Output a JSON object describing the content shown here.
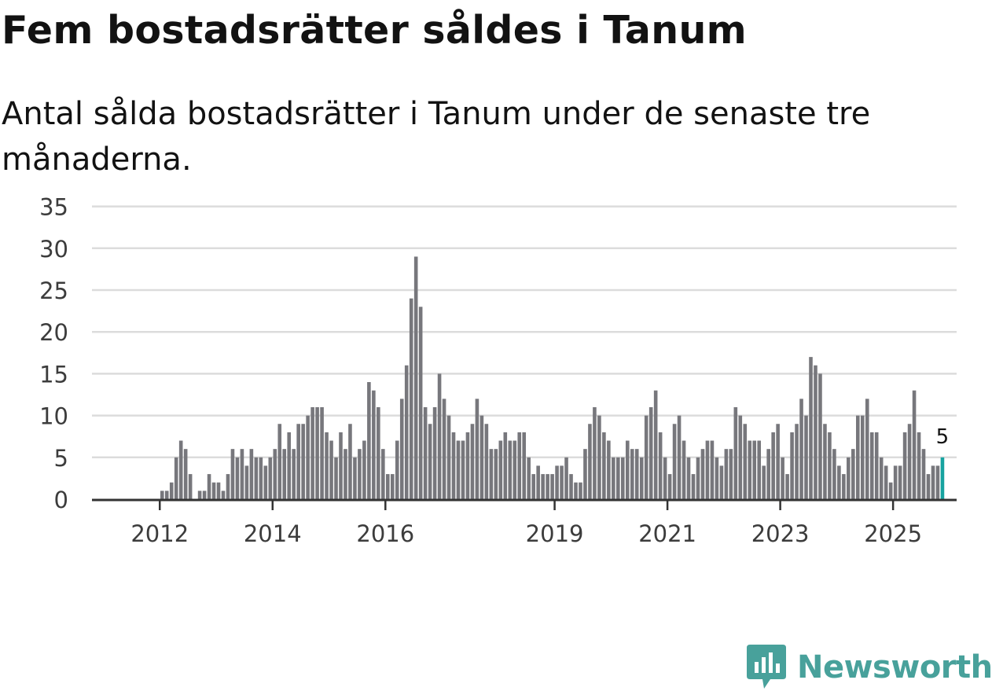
{
  "header": {
    "title": "Fem bostadsrätter såldes i Tanum",
    "subtitle": "Antal sålda bostadsrätter i Tanum under de senaste tre månaderna."
  },
  "brand": {
    "name": "Newsworthy",
    "color": "#48a19b"
  },
  "colors": {
    "bar": "#77777c",
    "highlight": "#17a3a0",
    "grid": "#dcdcdc",
    "axis": "#333333"
  },
  "chart_data": {
    "type": "bar",
    "title": "Fem bostadsrätter såldes i Tanum",
    "subtitle": "Antal sålda bostadsrätter i Tanum under de senaste tre månaderna.",
    "xlabel": "",
    "ylabel": "",
    "ylim": [
      0,
      35
    ],
    "yticks": [
      0,
      5,
      10,
      15,
      20,
      25,
      30,
      35
    ],
    "grid": true,
    "start_year": 2011,
    "x_tick_labels": [
      "2012",
      "2014",
      "2016",
      "2019",
      "2021",
      "2023",
      "2025"
    ],
    "values": [
      0,
      0,
      0,
      0,
      0,
      0,
      0,
      0,
      0,
      0,
      0,
      0,
      1,
      1,
      2,
      5,
      7,
      6,
      3,
      0,
      1,
      1,
      3,
      2,
      2,
      1,
      3,
      6,
      5,
      6,
      4,
      6,
      5,
      5,
      4,
      5,
      6,
      9,
      6,
      8,
      6,
      9,
      9,
      10,
      11,
      11,
      11,
      8,
      7,
      5,
      8,
      6,
      9,
      5,
      6,
      7,
      14,
      13,
      11,
      6,
      3,
      3,
      7,
      12,
      16,
      24,
      29,
      23,
      11,
      9,
      11,
      15,
      12,
      10,
      8,
      7,
      7,
      8,
      9,
      12,
      10,
      9,
      6,
      6,
      7,
      8,
      7,
      7,
      8,
      8,
      5,
      3,
      4,
      3,
      3,
      3,
      4,
      4,
      5,
      3,
      2,
      2,
      6,
      9,
      11,
      10,
      8,
      7,
      5,
      5,
      5,
      7,
      6,
      6,
      5,
      10,
      11,
      13,
      8,
      5,
      3,
      9,
      10,
      7,
      5,
      3,
      5,
      6,
      7,
      7,
      5,
      4,
      6,
      6,
      11,
      10,
      9,
      7,
      7,
      7,
      4,
      6,
      8,
      9,
      5,
      3,
      8,
      9,
      12,
      10,
      17,
      16,
      15,
      9,
      8,
      6,
      4,
      3,
      5,
      6,
      10,
      10,
      12,
      8,
      8,
      5,
      4,
      2,
      4,
      4,
      8,
      9,
      13,
      8,
      6,
      3,
      4,
      4,
      5
    ],
    "highlight_index": 178,
    "highlight_label": "5"
  }
}
